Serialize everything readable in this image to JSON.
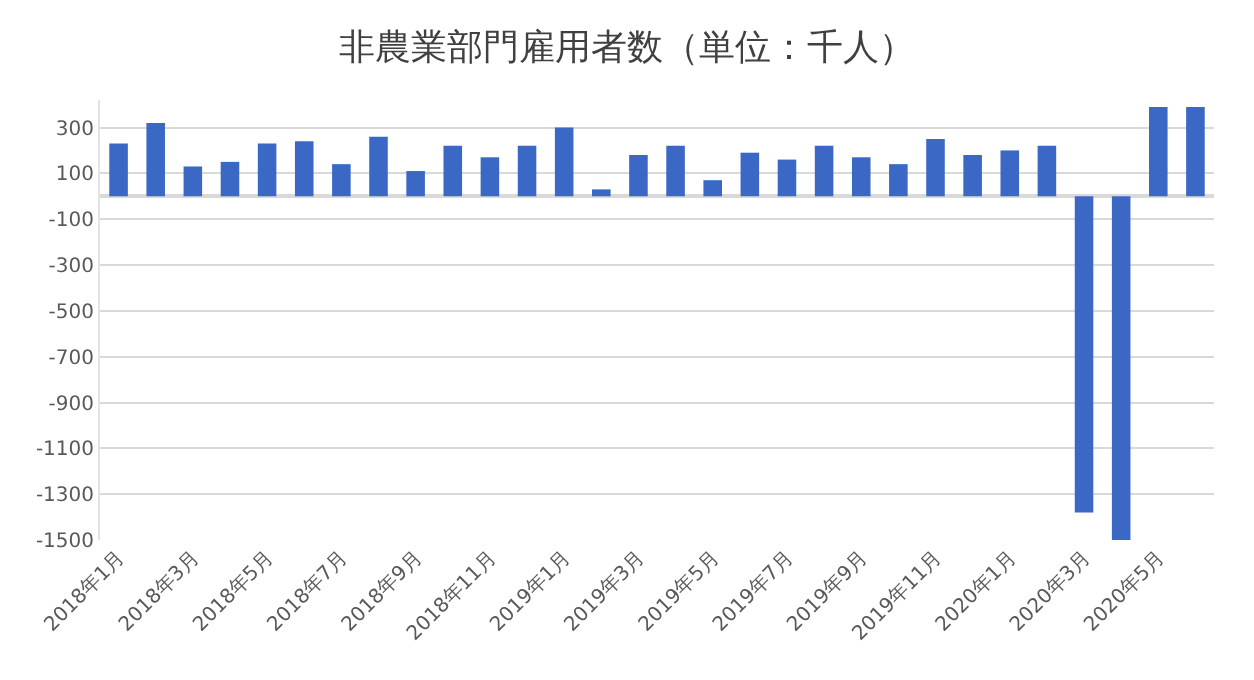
{
  "chart_data": {
    "type": "bar",
    "title": "非農業部門雇用者数（単位：千人）",
    "categories": [
      "2018年1月",
      null,
      "2018年3月",
      null,
      "2018年5月",
      null,
      "2018年7月",
      null,
      "2018年9月",
      null,
      "2018年11月",
      null,
      "2019年1月",
      null,
      "2019年3月",
      null,
      "2019年5月",
      null,
      "2019年7月",
      null,
      "2019年9月",
      null,
      "2019年11月",
      null,
      "2020年1月",
      null,
      "2020年3月",
      null,
      "2020年5月",
      null
    ],
    "values": [
      230,
      320,
      130,
      150,
      230,
      240,
      140,
      260,
      110,
      220,
      170,
      220,
      300,
      30,
      180,
      220,
      70,
      190,
      160,
      220,
      170,
      140,
      250,
      180,
      200,
      220,
      -1380,
      -1500,
      390,
      390
    ],
    "color": "#3a68c4",
    "ylim": [
      -1500,
      420
    ],
    "yticks": [
      -1500,
      -1300,
      -1100,
      -900,
      -700,
      -500,
      -300,
      -100,
      100,
      300
    ],
    "grid": "y"
  }
}
